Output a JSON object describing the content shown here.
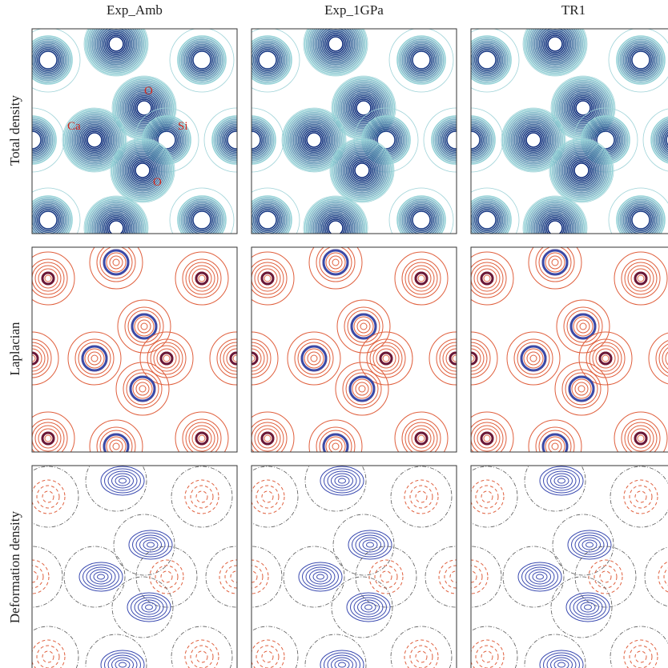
{
  "columns": [
    "Exp_Amb",
    "Exp_1GPa",
    "TR1"
  ],
  "rows": [
    "Total density",
    "Laplacian",
    "Deformation density"
  ],
  "atom_labels": [
    "Ca",
    "O",
    "Si",
    "O"
  ]
}
